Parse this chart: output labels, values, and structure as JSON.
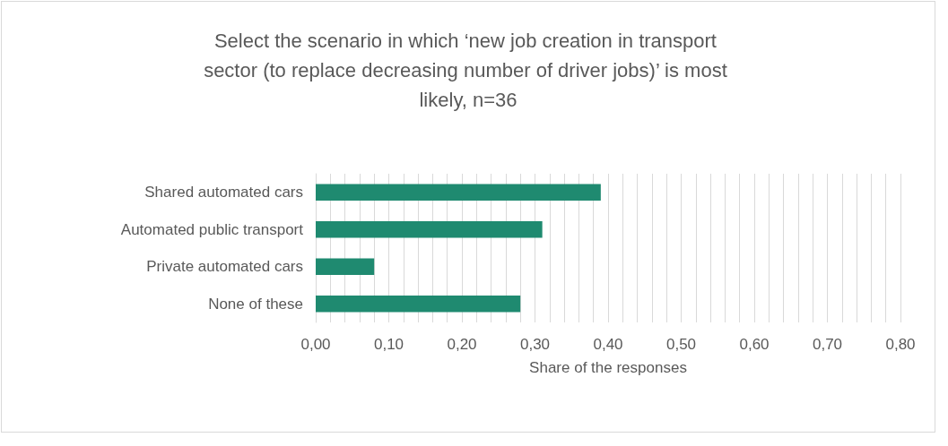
{
  "chart_data": {
    "type": "bar",
    "orientation": "horizontal",
    "title": "Select the scenario in which ‘new job creation in transport sector (to replace decreasing number of driver jobs)’ is most likely, n=36",
    "xlabel": "Share of the responses",
    "categories": [
      "Shared automated cars",
      "Automated public transport",
      "Private automated cars",
      "None of these"
    ],
    "values": [
      0.39,
      0.31,
      0.08,
      0.28
    ],
    "color": "#1f8a70",
    "xlim": [
      0,
      0.8
    ],
    "xticks": [
      {
        "value": 0,
        "label": "0,00"
      },
      {
        "value": 0.02,
        "label": null
      },
      {
        "value": 0.04,
        "label": null
      },
      {
        "value": 0.06,
        "label": null
      },
      {
        "value": 0.08,
        "label": null
      },
      {
        "value": 0.1,
        "label": "0,10"
      },
      {
        "value": 0.12,
        "label": null
      },
      {
        "value": 0.14,
        "label": null
      },
      {
        "value": 0.16,
        "label": null
      },
      {
        "value": 0.18,
        "label": null
      },
      {
        "value": 0.2,
        "label": "0,20"
      },
      {
        "value": 0.22,
        "label": null
      },
      {
        "value": 0.24,
        "label": null
      },
      {
        "value": 0.26,
        "label": null
      },
      {
        "value": 0.28,
        "label": null
      },
      {
        "value": 0.3,
        "label": "0,30"
      },
      {
        "value": 0.32,
        "label": null
      },
      {
        "value": 0.34,
        "label": null
      },
      {
        "value": 0.36,
        "label": null
      },
      {
        "value": 0.38,
        "label": null
      },
      {
        "value": 0.4,
        "label": "0,40"
      },
      {
        "value": 0.42,
        "label": null
      },
      {
        "value": 0.44,
        "label": null
      },
      {
        "value": 0.46,
        "label": null
      },
      {
        "value": 0.48,
        "label": null
      },
      {
        "value": 0.5,
        "label": "0,50"
      },
      {
        "value": 0.52,
        "label": null
      },
      {
        "value": 0.54,
        "label": null
      },
      {
        "value": 0.56,
        "label": null
      },
      {
        "value": 0.58,
        "label": null
      },
      {
        "value": 0.6,
        "label": "0,60"
      },
      {
        "value": 0.62,
        "label": null
      },
      {
        "value": 0.64,
        "label": null
      },
      {
        "value": 0.66,
        "label": null
      },
      {
        "value": 0.68,
        "label": null
      },
      {
        "value": 0.7,
        "label": "0,70"
      },
      {
        "value": 0.72,
        "label": null
      },
      {
        "value": 0.74,
        "label": null
      },
      {
        "value": 0.76,
        "label": null
      },
      {
        "value": 0.78,
        "label": null
      },
      {
        "value": 0.8,
        "label": "0,80"
      }
    ],
    "grid": "x"
  }
}
